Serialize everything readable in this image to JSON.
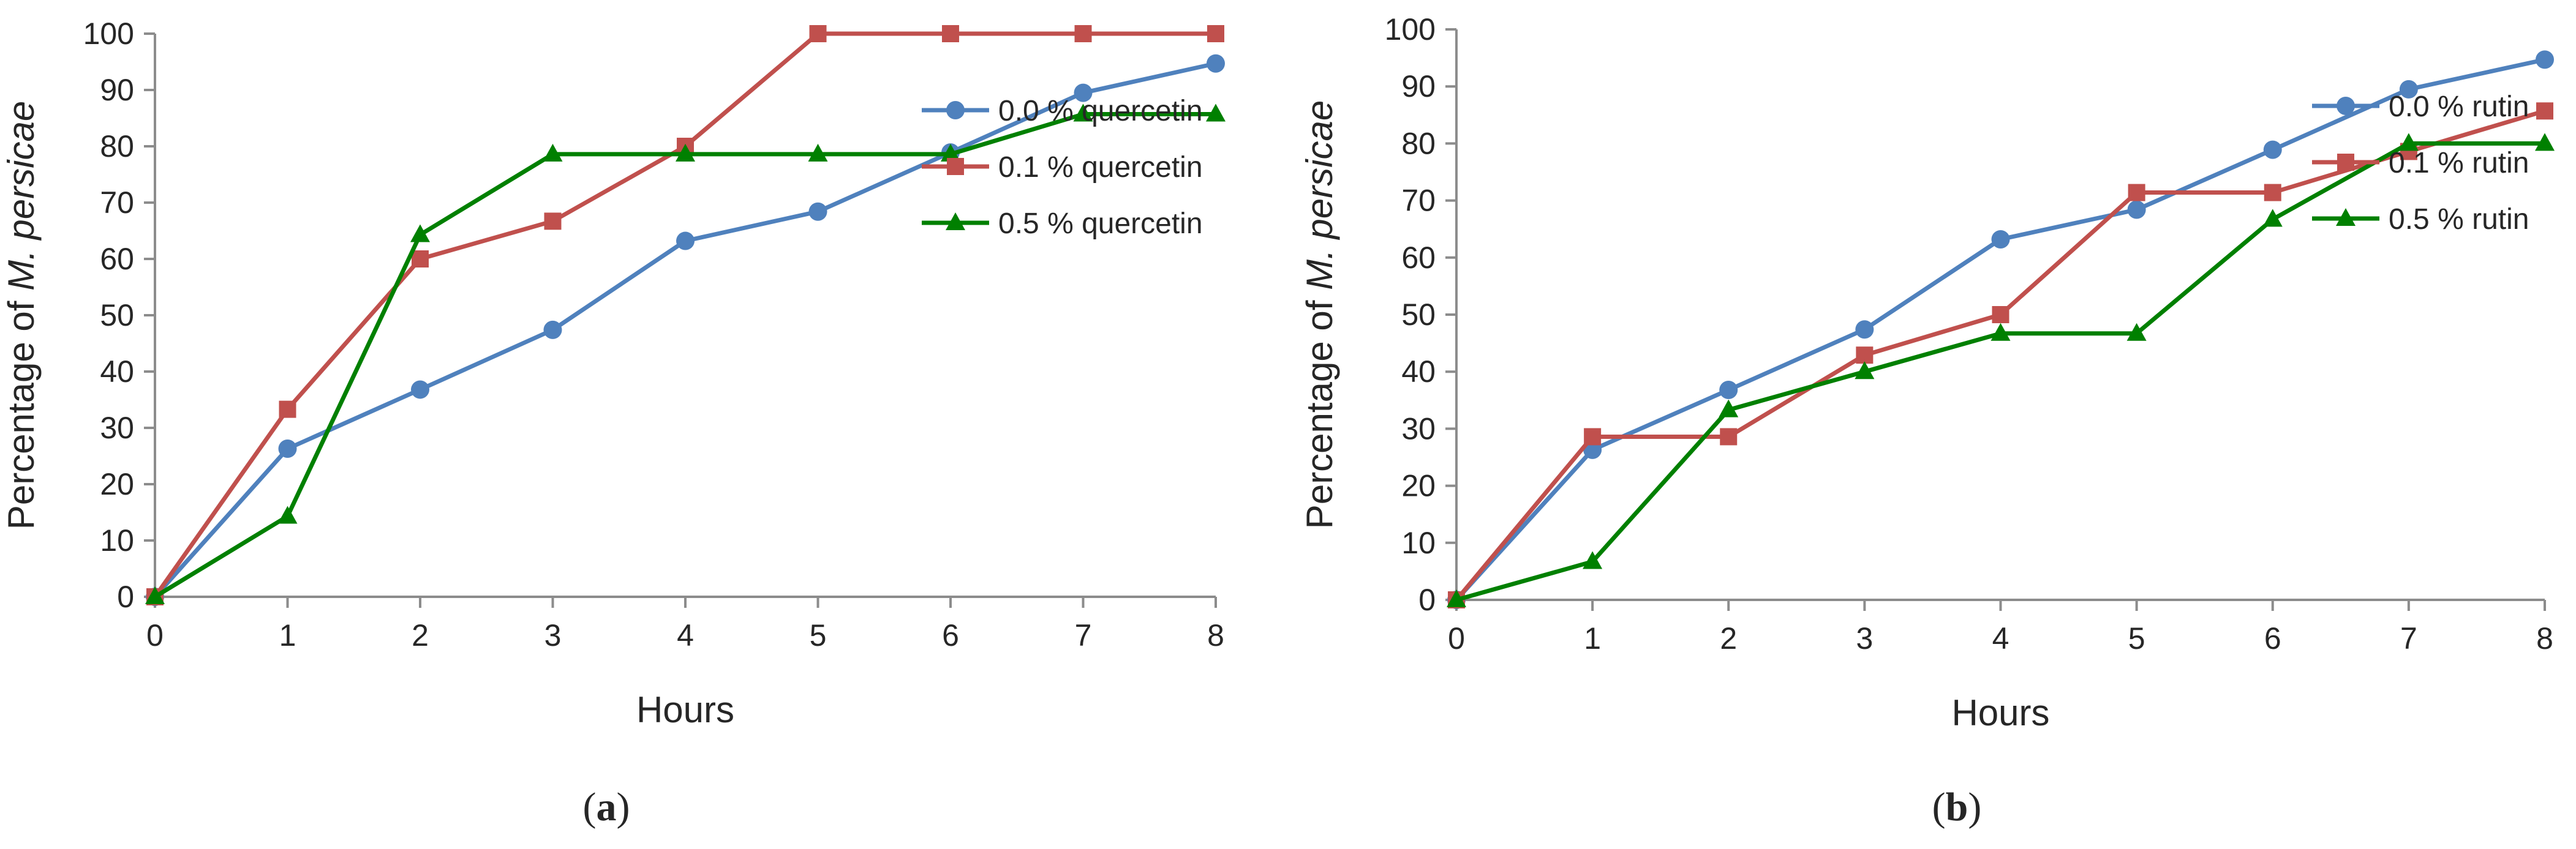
{
  "chart_data": [
    {
      "type": "line",
      "panel_label": "a",
      "xlabel": "Hours",
      "ylabel_prefix": "Percentage of ",
      "ylabel_italic": "M. persicae",
      "x": [
        0,
        1,
        2,
        3,
        4,
        5,
        6,
        7,
        8
      ],
      "xlim": [
        0,
        8
      ],
      "ylim": [
        0,
        100
      ],
      "x_ticks": [
        "0",
        "1",
        "2",
        "3",
        "4",
        "5",
        "6",
        "7",
        "8"
      ],
      "y_ticks": [
        "0",
        "10",
        "20",
        "30",
        "40",
        "50",
        "60",
        "70",
        "80",
        "90",
        "100"
      ],
      "grid": false,
      "legend_position": "right",
      "series": [
        {
          "name": "0.0 % quercetin",
          "color": "#4F81BD",
          "marker": "circle",
          "values": [
            0,
            26.3,
            36.8,
            47.4,
            63.2,
            68.4,
            78.9,
            89.5,
            94.7
          ]
        },
        {
          "name": "0.1 % quercetin",
          "color": "#C0504D",
          "marker": "square",
          "values": [
            0,
            33.3,
            60,
            66.7,
            80,
            100,
            100,
            100,
            100
          ]
        },
        {
          "name": "0.5 % quercetin",
          "color": "#008000",
          "marker": "triangle",
          "values": [
            0,
            14.3,
            64.3,
            78.6,
            78.6,
            78.6,
            78.6,
            85.7,
            85.7
          ]
        }
      ]
    },
    {
      "type": "line",
      "panel_label": "b",
      "xlabel": "Hours",
      "ylabel_prefix": "Percentage of ",
      "ylabel_italic": "M. persicae",
      "x": [
        0,
        1,
        2,
        3,
        4,
        5,
        6,
        7,
        8
      ],
      "xlim": [
        0,
        8
      ],
      "ylim": [
        0,
        100
      ],
      "x_ticks": [
        "0",
        "1",
        "2",
        "3",
        "4",
        "5",
        "6",
        "7",
        "8"
      ],
      "y_ticks": [
        "0",
        "10",
        "20",
        "30",
        "40",
        "50",
        "60",
        "70",
        "80",
        "90",
        "100"
      ],
      "grid": false,
      "legend_position": "right",
      "series": [
        {
          "name": "0.0 % rutin",
          "color": "#4F81BD",
          "marker": "circle",
          "values": [
            0,
            26.3,
            36.8,
            47.4,
            63.2,
            68.4,
            78.9,
            89.5,
            94.7
          ]
        },
        {
          "name": "0.1 % rutin",
          "color": "#C0504D",
          "marker": "square",
          "values": [
            0,
            28.6,
            28.6,
            42.9,
            50,
            71.4,
            71.4,
            78.6,
            85.7
          ]
        },
        {
          "name": "0.5 % rutin",
          "color": "#008000",
          "marker": "triangle",
          "values": [
            0,
            6.7,
            33.3,
            40,
            46.7,
            46.7,
            66.7,
            80,
            80
          ]
        }
      ]
    }
  ]
}
